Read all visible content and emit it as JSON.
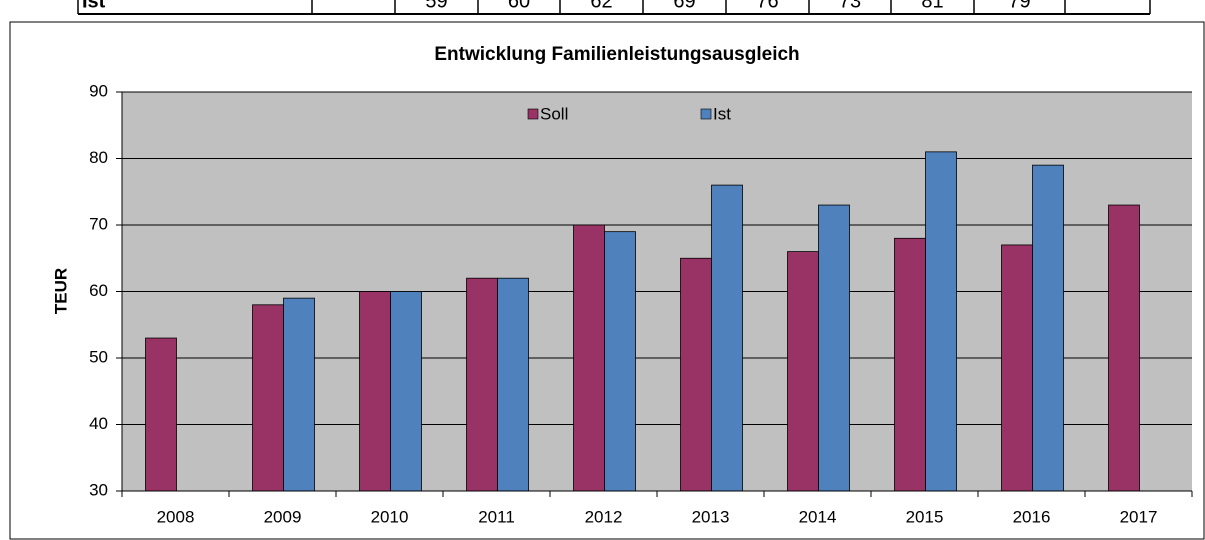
{
  "table": {
    "rows": [
      [
        "Ist",
        null,
        "59",
        "60",
        "62",
        "69",
        "76",
        "73",
        "81",
        "79",
        null
      ]
    ]
  },
  "chart_data": {
    "type": "bar",
    "title": "Entwicklung Familienleistungsausgleich",
    "y_label": "TEUR",
    "categories": [
      "2008",
      "2009",
      "2010",
      "2011",
      "2012",
      "2013",
      "2014",
      "2015",
      "2016",
      "2017"
    ],
    "series": [
      {
        "name": "Soll",
        "color": "#993366",
        "values": [
          53,
          58,
          60,
          62,
          70,
          65,
          66,
          68,
          67,
          73
        ]
      },
      {
        "name": "Ist",
        "color": "#4f81bd",
        "values": [
          null,
          59,
          60,
          62,
          69,
          76,
          73,
          81,
          79,
          null
        ]
      }
    ],
    "ylim": [
      30,
      90
    ],
    "yticks": [
      30,
      40,
      50,
      60,
      70,
      80,
      90
    ],
    "grid": true,
    "legend": "top"
  }
}
